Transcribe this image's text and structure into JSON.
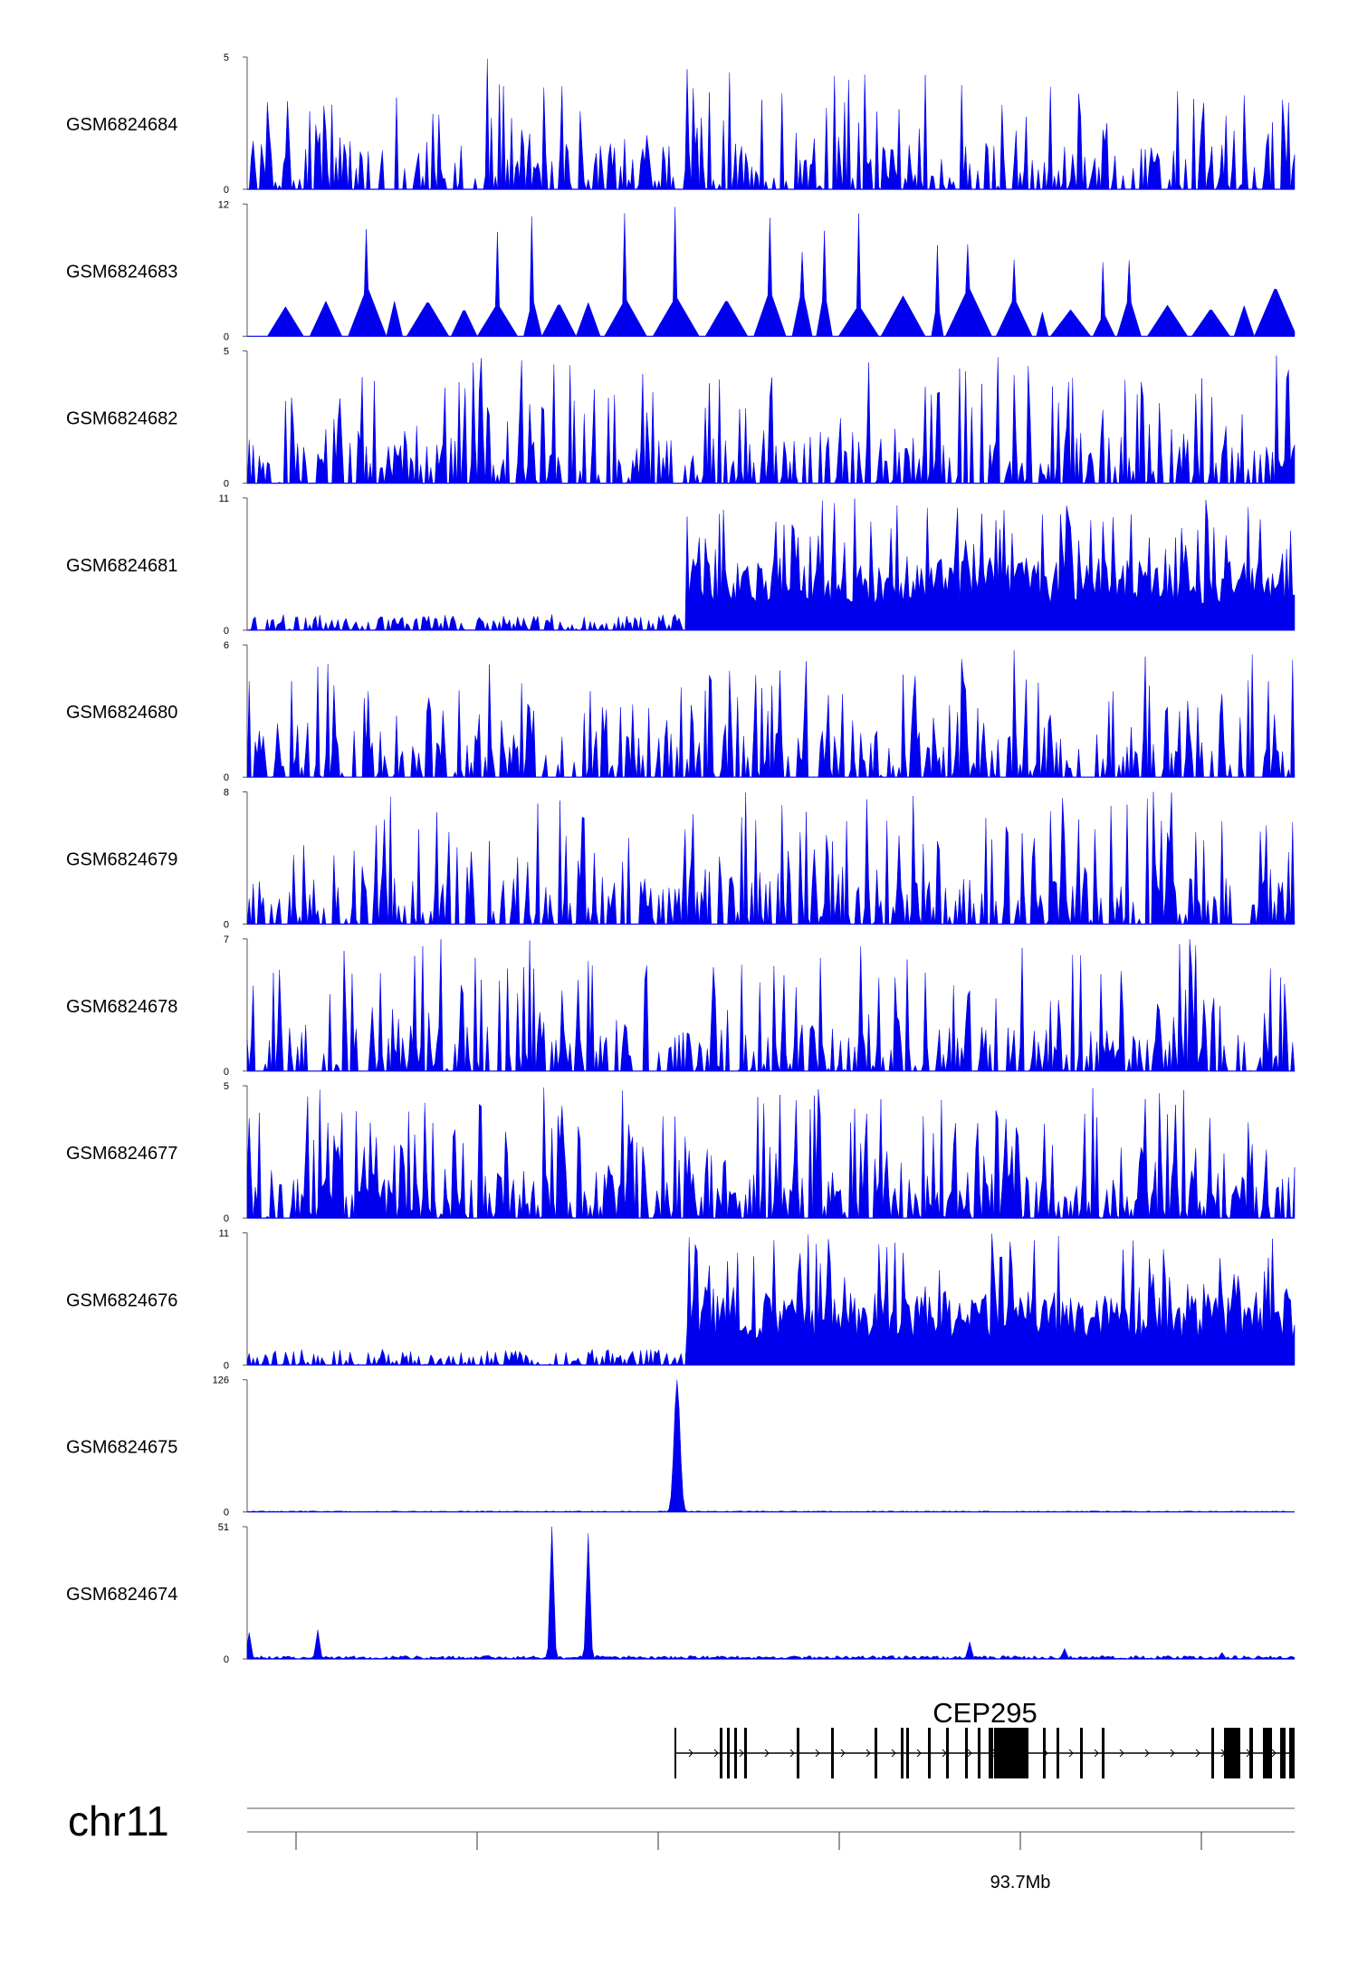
{
  "chart_data": {
    "type": "area",
    "chromosome": "chr11",
    "coordinate_tick_label": "93.7Mb",
    "colors": {
      "signal": "#0000ee",
      "axis": "#555555",
      "gene": "#000000"
    },
    "tracks": [
      {
        "name": "GSM6824684",
        "ymax": 5,
        "ymin": 0,
        "profile": "sparse-peaks"
      },
      {
        "name": "GSM6824683",
        "ymax": 12,
        "ymin": 0,
        "profile": "triangular-sparse"
      },
      {
        "name": "GSM6824682",
        "ymax": 5,
        "ymin": 0,
        "profile": "sparse-peaks"
      },
      {
        "name": "GSM6824681",
        "ymax": 11,
        "ymin": 0,
        "profile": "low-then-high"
      },
      {
        "name": "GSM6824680",
        "ymax": 6,
        "ymin": 0,
        "profile": "sparse-peaks"
      },
      {
        "name": "GSM6824679",
        "ymax": 8,
        "ymin": 0,
        "profile": "sparse-peaks"
      },
      {
        "name": "GSM6824678",
        "ymax": 7,
        "ymin": 0,
        "profile": "sparse-peaks"
      },
      {
        "name": "GSM6824677",
        "ymax": 5,
        "ymin": 0,
        "profile": "dense-peaks"
      },
      {
        "name": "GSM6824676",
        "ymax": 11,
        "ymin": 0,
        "profile": "low-then-high"
      },
      {
        "name": "GSM6824675",
        "ymax": 126,
        "ymin": 0,
        "profile": "single-peak"
      },
      {
        "name": "GSM6824674",
        "ymax": 51,
        "ymin": 0,
        "profile": "double-peak"
      }
    ],
    "gene": {
      "name": "CEP295",
      "strand": "+"
    }
  }
}
